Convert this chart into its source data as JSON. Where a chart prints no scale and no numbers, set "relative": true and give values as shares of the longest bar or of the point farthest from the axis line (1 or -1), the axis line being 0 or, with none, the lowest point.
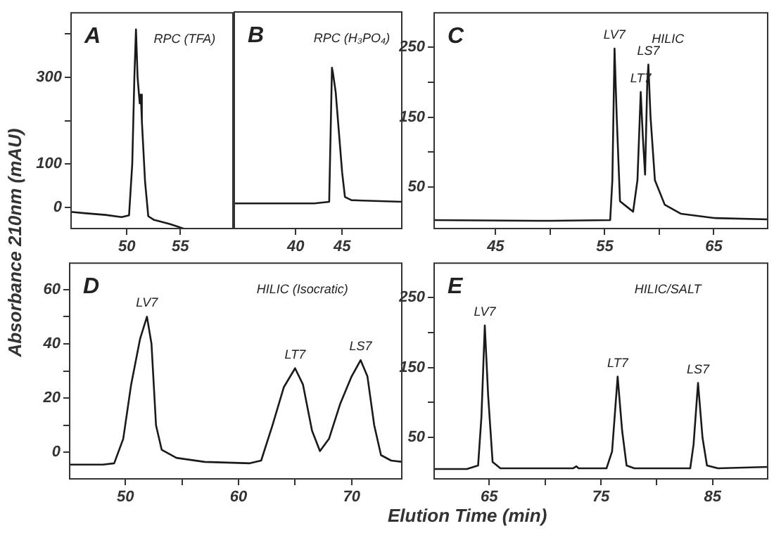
{
  "chart_data": [
    {
      "type": "line",
      "title": "A",
      "subtitle": "RPC (TFA)",
      "color": "#1a1a1a",
      "marker": "none",
      "x": [
        44.7,
        46,
        48,
        49.5,
        50.2,
        50.5,
        50.7,
        50.85,
        51.0,
        51.2,
        51.3,
        51.4,
        51.7,
        52,
        52.5,
        54,
        55.5
      ],
      "values": [
        -10,
        -13,
        -17,
        -22,
        -18,
        100,
        300,
        410,
        300,
        240,
        260,
        200,
        60,
        -20,
        -28,
        -38,
        -50
      ],
      "xlim": [
        44.7,
        60
      ],
      "xticks": [
        50,
        55
      ],
      "ylim": [
        -50,
        450
      ],
      "yticks": [
        0,
        100,
        {
          "value": 200,
          "label": null
        },
        300,
        {
          "value": 400,
          "label": null
        }
      ]
    },
    {
      "type": "line",
      "title": "B",
      "subtitle": "RPC (H₃PO₄)",
      "color": "#1a1a1a",
      "marker": "none",
      "relative": true,
      "tick_labels": "x",
      "x": [
        33.3,
        38,
        42,
        43.6,
        43.9,
        44.0,
        44.3,
        45,
        45.3,
        46,
        51.5
      ],
      "values": [
        0.16,
        0.16,
        0.16,
        0.17,
        1,
        0.97,
        0.85,
        0.35,
        0.2,
        0.18,
        0.17
      ],
      "xlim": [
        33.3,
        51.5
      ],
      "xticks": [
        40,
        45
      ]
    },
    {
      "type": "line",
      "title": "C",
      "subtitle": "HILIC",
      "color": "#1a1a1a",
      "marker": "none",
      "x": [
        39.3,
        50,
        55.5,
        55.7,
        55.9,
        56.1,
        56.4,
        57.2,
        57.6,
        58.0,
        58.3,
        58.5,
        58.7,
        58.9,
        59.0,
        59.2,
        59.6,
        60.5,
        62,
        65,
        70
      ],
      "values": [
        3,
        2,
        3,
        60,
        248,
        150,
        30,
        20,
        15,
        60,
        186,
        120,
        68,
        200,
        225,
        150,
        60,
        25,
        12,
        6,
        4
      ],
      "xlim": [
        39.3,
        70
      ],
      "xticks": [
        45,
        {
          "value": 50,
          "label": null
        },
        55,
        {
          "value": 60,
          "label": null
        },
        65
      ],
      "ylim": [
        -10,
        300
      ],
      "yticks": [
        50,
        {
          "value": 100,
          "label": null
        },
        150,
        {
          "value": 200,
          "label": null
        },
        250
      ],
      "annotations": [
        {
          "text": "LV7",
          "x": 55.9,
          "y": 248
        },
        {
          "text": "LT7",
          "x": 58.3,
          "y": 186
        },
        {
          "text": "LS7",
          "x": 59.0,
          "y": 225
        }
      ]
    },
    {
      "type": "line",
      "title": "D",
      "subtitle": "HILIC (Isocratic)",
      "color": "#1a1a1a",
      "marker": "none",
      "xlabel": "Elution Time (min)",
      "ylabel": "Absorbance 210nm (mAU)",
      "x": [
        45,
        48,
        49,
        49.8,
        50.5,
        51.3,
        51.9,
        52.3,
        52.7,
        53.2,
        54.5,
        57,
        61,
        62,
        63,
        64,
        65,
        65.7,
        66.5,
        67.2,
        68,
        69,
        70,
        70.8,
        71.4,
        72,
        72.6,
        73.5,
        74.5
      ],
      "values": [
        -4.5,
        -4.5,
        -4,
        5,
        25,
        42,
        50,
        40,
        10,
        1,
        -2,
        -3.5,
        -4,
        -3,
        10,
        24,
        31,
        25,
        8,
        0.5,
        5,
        18,
        28,
        34,
        28,
        10,
        -1,
        -3,
        -3.5
      ],
      "xlim": [
        45,
        74.5
      ],
      "xticks": [
        50,
        {
          "value": 55,
          "label": null
        },
        60,
        {
          "value": 65,
          "label": null
        },
        70
      ],
      "ylim": [
        -10,
        70
      ],
      "yticks": [
        0,
        {
          "value": 10,
          "label": null
        },
        20,
        {
          "value": 30,
          "label": null
        },
        40,
        {
          "value": 50,
          "label": null
        },
        60
      ],
      "annotations": [
        {
          "text": "LV7",
          "x": 51.9,
          "y": 50
        },
        {
          "text": "LT7",
          "x": 65,
          "y": 31
        },
        {
          "text": "LS7",
          "x": 70.8,
          "y": 34
        }
      ]
    },
    {
      "type": "line",
      "title": "E",
      "subtitle": "HILIC/SALT",
      "color": "#1a1a1a",
      "marker": "none",
      "x": [
        60,
        63,
        64.0,
        64.3,
        64.6,
        64.9,
        65.3,
        66,
        72.5,
        72.8,
        73,
        75.5,
        76.0,
        76.5,
        76.9,
        77.3,
        78,
        83,
        83.3,
        83.7,
        84.1,
        84.5,
        85.5,
        90
      ],
      "values": [
        5,
        5,
        10,
        80,
        210,
        110,
        15,
        6,
        6,
        9,
        6,
        6,
        30,
        137,
        60,
        10,
        6,
        6,
        40,
        128,
        50,
        10,
        6,
        8
      ],
      "xlim": [
        60,
        90
      ],
      "xticks": [
        65,
        {
          "value": 70,
          "label": null
        },
        75,
        {
          "value": 80,
          "label": null
        },
        85
      ],
      "ylim": [
        -10,
        300
      ],
      "yticks": [
        50,
        {
          "value": 100,
          "label": null
        },
        150,
        {
          "value": 200,
          "label": null
        },
        250
      ],
      "annotations": [
        {
          "text": "LV7",
          "x": 64.6,
          "y": 210
        },
        {
          "text": "LT7",
          "x": 76.5,
          "y": 137
        },
        {
          "text": "LS7",
          "x": 83.7,
          "y": 128
        }
      ]
    }
  ]
}
